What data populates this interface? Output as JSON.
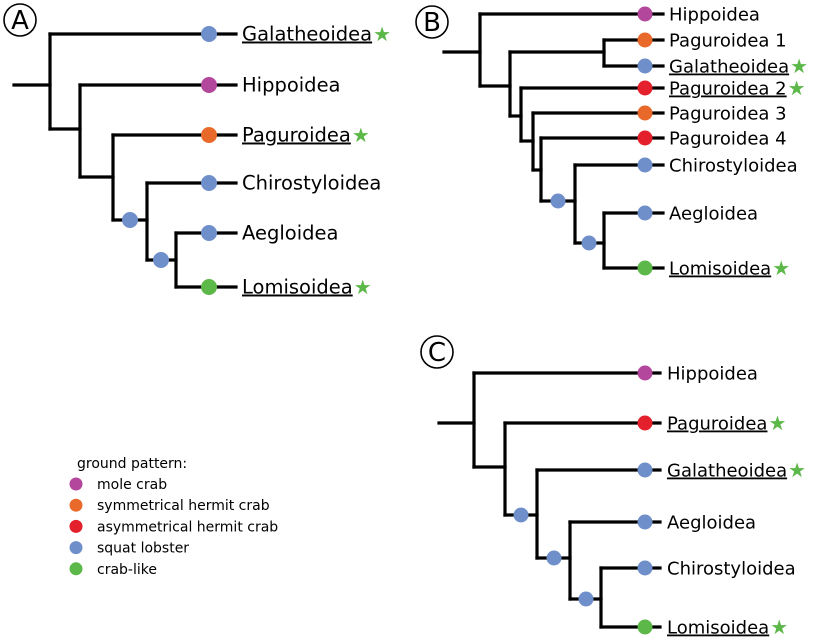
{
  "colors": {
    "mole crab": "#b2479b",
    "symmetrical hermit crab": "#e8692a",
    "asymmetrical hermit crab": "#e3202b",
    "squat lobster": "#6f8fcb",
    "crab-like": "#5cb848",
    "star": "#5cb848",
    "branch": "#000000"
  },
  "panels": [
    {
      "letter": "A",
      "tips": [
        {
          "label": "Galatheoidea",
          "pattern": "squat lobster",
          "underlined": true,
          "star": true
        },
        {
          "label": "Hippoidea",
          "pattern": "mole crab",
          "underlined": false,
          "star": false
        },
        {
          "label": "Paguroidea",
          "pattern": "symmetrical hermit crab",
          "underlined": true,
          "star": true
        },
        {
          "label": "Chirostyloidea",
          "pattern": "squat lobster",
          "underlined": false,
          "star": false
        },
        {
          "label": "Aegloidea",
          "pattern": "squat lobster",
          "underlined": false,
          "star": false
        },
        {
          "label": "Lomisoidea",
          "pattern": "crab-like",
          "underlined": true,
          "star": true
        }
      ],
      "internal_node_patterns": [
        "squat lobster",
        "squat lobster"
      ]
    },
    {
      "letter": "B",
      "tips": [
        {
          "label": "Hippoidea",
          "pattern": "mole crab",
          "underlined": false,
          "star": false
        },
        {
          "label": "Paguroidea 1",
          "pattern": "symmetrical hermit crab",
          "underlined": false,
          "star": false
        },
        {
          "label": "Galatheoidea",
          "pattern": "squat lobster",
          "underlined": true,
          "star": true
        },
        {
          "label": "Paguroidea 2",
          "pattern": "asymmetrical hermit crab",
          "underlined": true,
          "star": true
        },
        {
          "label": "Paguroidea 3",
          "pattern": "symmetrical hermit crab",
          "underlined": false,
          "star": false
        },
        {
          "label": "Paguroidea 4",
          "pattern": "asymmetrical hermit crab",
          "underlined": false,
          "star": false
        },
        {
          "label": "Chirostyloidea",
          "pattern": "squat lobster",
          "underlined": false,
          "star": false
        },
        {
          "label": "Aegloidea",
          "pattern": "squat lobster",
          "underlined": false,
          "star": false
        },
        {
          "label": "Lomisoidea",
          "pattern": "crab-like",
          "underlined": true,
          "star": true
        }
      ],
      "internal_node_patterns": [
        "squat lobster",
        "squat lobster"
      ]
    },
    {
      "letter": "C",
      "tips": [
        {
          "label": "Hippoidea",
          "pattern": "mole crab",
          "underlined": false,
          "star": false
        },
        {
          "label": "Paguroidea",
          "pattern": "asymmetrical hermit crab",
          "underlined": true,
          "star": true
        },
        {
          "label": "Galatheoidea",
          "pattern": "squat lobster",
          "underlined": true,
          "star": true
        },
        {
          "label": "Aegloidea",
          "pattern": "squat lobster",
          "underlined": false,
          "star": false
        },
        {
          "label": "Chirostyloidea",
          "pattern": "squat lobster",
          "underlined": false,
          "star": false
        },
        {
          "label": "Lomisoidea",
          "pattern": "crab-like",
          "underlined": true,
          "star": true
        }
      ],
      "internal_node_patterns": [
        "squat lobster",
        "squat lobster",
        "squat lobster"
      ]
    }
  ],
  "legend": {
    "title": "ground pattern:",
    "items": [
      {
        "label": "mole crab",
        "pattern": "mole crab"
      },
      {
        "label": "symmetrical hermit crab",
        "pattern": "symmetrical hermit crab"
      },
      {
        "label": "asymmetrical hermit crab",
        "pattern": "asymmetrical hermit crab"
      },
      {
        "label": "squat lobster",
        "pattern": "squat lobster"
      },
      {
        "label": "crab-like",
        "pattern": "crab-like"
      }
    ]
  }
}
